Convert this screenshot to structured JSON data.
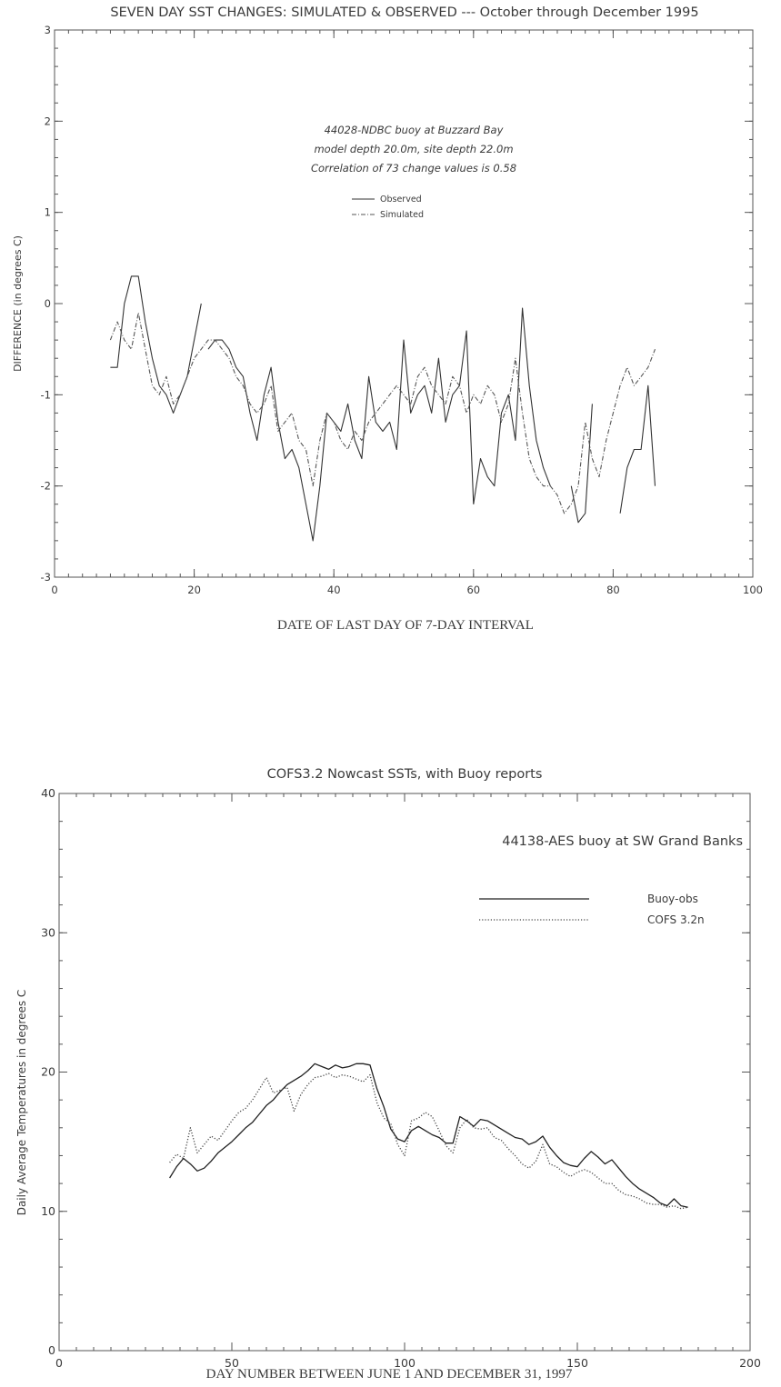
{
  "chart_data": [
    {
      "type": "line",
      "title": "SEVEN DAY SST CHANGES: SIMULATED & OBSERVED --- October through December 1995",
      "xlabel": "DATE OF LAST DAY OF 7-DAY INTERVAL",
      "ylabel": "DIFFERENCE (in degrees C)",
      "xlim": [
        0,
        100
      ],
      "ylim": [
        -3,
        3
      ],
      "xticks": [
        "0",
        "20",
        "40",
        "60",
        "80",
        "100"
      ],
      "yticks": [
        "-3",
        "-2",
        "-1",
        "0",
        "1",
        "2",
        "3"
      ],
      "annotations": [
        "44028-NDBC buoy at Buzzard Bay",
        "model depth 20.0m, site depth 22.0m",
        "Correlation of 73 change values is 0.58"
      ],
      "legend_position": "top-center",
      "grid": false,
      "series": [
        {
          "name": "Observed",
          "style": "solid",
          "segments": [
            {
              "x": [
                8,
                9,
                10,
                11,
                12,
                13,
                14,
                15,
                16,
                17,
                18,
                19,
                20,
                21
              ],
              "y": [
                -0.7,
                -0.7,
                0.0,
                0.3,
                0.3,
                -0.2,
                -0.6,
                -0.9,
                -1.0,
                -1.2,
                -1.0,
                -0.8,
                -0.4,
                0.0
              ]
            },
            {
              "x": [
                22,
                23,
                24,
                25,
                26,
                27,
                28,
                29,
                30,
                31,
                32,
                33,
                34,
                35,
                36,
                37,
                38,
                39,
                40,
                41,
                42,
                43,
                44,
                45,
                46,
                47,
                48,
                49,
                50,
                51,
                52,
                53,
                54,
                55,
                56,
                57,
                58,
                59,
                60
              ],
              "y": [
                -0.5,
                -0.4,
                -0.4,
                -0.5,
                -0.7,
                -0.8,
                -1.2,
                -1.5,
                -1.0,
                -0.7,
                -1.3,
                -1.7,
                -1.6,
                -1.8,
                -2.2,
                -2.6,
                -2.0,
                -1.2,
                -1.3,
                -1.4,
                -1.1,
                -1.5,
                -1.7,
                -0.8,
                -1.3,
                -1.4,
                -1.3,
                -1.6,
                -0.4,
                -1.2,
                -1.0,
                -0.9,
                -1.2,
                -0.6,
                -1.3,
                -1.0,
                -0.9,
                -0.3,
                -2.2
              ]
            },
            {
              "x": [
                60,
                61,
                62,
                63,
                64,
                65,
                66,
                67,
                68,
                69,
                70,
                71
              ],
              "y": [
                -2.2,
                -1.7,
                -1.9,
                -2.0,
                -1.2,
                -1.0,
                -1.5,
                -0.05,
                -0.9,
                -1.5,
                -1.8,
                -2.0
              ]
            },
            {
              "x": [
                74,
                75,
                76,
                77
              ],
              "y": [
                -2.0,
                -2.4,
                -2.3,
                -1.1
              ]
            },
            {
              "x": [
                81,
                82,
                83,
                84,
                85,
                86
              ],
              "y": [
                -2.3,
                -1.8,
                -1.6,
                -1.6,
                -0.9,
                -2.0
              ]
            }
          ]
        },
        {
          "name": "Simulated",
          "style": "dashdot",
          "segments": [
            {
              "x": [
                8,
                9,
                10,
                11,
                12,
                13,
                14,
                15,
                16,
                17,
                18,
                19,
                20,
                21,
                22,
                23,
                24,
                25,
                26,
                27,
                28,
                29,
                30,
                31,
                32,
                33,
                34,
                35,
                36,
                37,
                38,
                39,
                40,
                41,
                42,
                43,
                44,
                45,
                46,
                47,
                48,
                49,
                50,
                51,
                52,
                53,
                54,
                55,
                56,
                57,
                58,
                59,
                60,
                61,
                62,
                63,
                64,
                65,
                66,
                67,
                68,
                69,
                70,
                71,
                72,
                73,
                74,
                75,
                76,
                77,
                78,
                79,
                80,
                81,
                82,
                83,
                84,
                85,
                86
              ],
              "y": [
                -0.4,
                -0.2,
                -0.4,
                -0.5,
                -0.1,
                -0.5,
                -0.9,
                -1.0,
                -0.8,
                -1.1,
                -1.0,
                -0.8,
                -0.6,
                -0.5,
                -0.4,
                -0.4,
                -0.5,
                -0.6,
                -0.8,
                -0.9,
                -1.1,
                -1.2,
                -1.1,
                -0.9,
                -1.4,
                -1.3,
                -1.2,
                -1.5,
                -1.6,
                -2.0,
                -1.5,
                -1.2,
                -1.3,
                -1.5,
                -1.6,
                -1.4,
                -1.5,
                -1.3,
                -1.2,
                -1.1,
                -1.0,
                -0.9,
                -1.0,
                -1.1,
                -0.8,
                -0.7,
                -0.9,
                -1.0,
                -1.1,
                -0.8,
                -0.9,
                -1.2,
                -1.0,
                -1.1,
                -0.9,
                -1.0,
                -1.3,
                -1.1,
                -0.6,
                -1.2,
                -1.7,
                -1.9,
                -2.0,
                -2.0,
                -2.1,
                -2.3,
                -2.2,
                -2.0,
                -1.3,
                -1.7,
                -1.9,
                -1.5,
                -1.2,
                -0.9,
                -0.7,
                -0.9,
                -0.8,
                -0.7,
                -0.5
              ]
            }
          ]
        }
      ]
    },
    {
      "type": "line",
      "title": "COFS3.2 Nowcast SSTs, with Buoy reports",
      "xlabel": "DAY NUMBER BETWEEN JUNE 1 AND DECEMBER 31, 1997",
      "ylabel": "Daily Average Temperatures in degrees C",
      "xlim": [
        0,
        200
      ],
      "ylim": [
        0,
        40
      ],
      "xticks": [
        "0",
        "50",
        "100",
        "150",
        "200"
      ],
      "yticks": [
        "0",
        "10",
        "20",
        "30",
        "40"
      ],
      "annotations": [
        "44138-AES  buoy at SW Grand Banks"
      ],
      "legend_position": "top-right",
      "grid": false,
      "series": [
        {
          "name": "Buoy-obs",
          "style": "solid",
          "segments": [
            {
              "x": [
                32,
                34,
                36,
                38,
                40,
                42,
                44,
                46,
                48,
                50,
                52,
                54,
                56,
                58,
                60,
                62,
                64,
                66,
                68,
                70,
                72,
                74,
                76,
                78,
                80,
                82,
                84,
                86,
                88,
                90,
                92,
                94,
                96,
                98,
                100,
                102,
                104,
                106,
                108,
                110,
                112,
                114,
                116,
                118,
                120,
                122,
                124,
                126,
                128,
                130,
                132,
                134,
                136,
                138,
                140,
                142,
                144,
                146,
                148,
                150,
                152,
                154,
                156,
                158,
                160,
                162,
                164,
                166,
                168,
                170,
                172,
                174,
                176,
                178,
                180,
                182
              ],
              "y": [
                12.4,
                13.2,
                13.8,
                13.4,
                12.9,
                13.1,
                13.6,
                14.2,
                14.6,
                15.0,
                15.5,
                16.0,
                16.4,
                17.0,
                17.6,
                18.0,
                18.6,
                19.1,
                19.4,
                19.7,
                20.1,
                20.6,
                20.4,
                20.2,
                20.5,
                20.3,
                20.4,
                20.6,
                20.6,
                20.5,
                18.8,
                17.5,
                15.9,
                15.2,
                15.0,
                15.8,
                16.1,
                15.8,
                15.5,
                15.3,
                14.9,
                14.9,
                16.8,
                16.5,
                16.1,
                16.6,
                16.5,
                16.2,
                15.9,
                15.6,
                15.3,
                15.2,
                14.8,
                15.0,
                15.4,
                14.6,
                14.0,
                13.5,
                13.3,
                13.2,
                13.8,
                14.3,
                13.9,
                13.4,
                13.7,
                13.1,
                12.5,
                12.0,
                11.6,
                11.3,
                11.0,
                10.6,
                10.4,
                10.9,
                10.4,
                10.3
              ]
            }
          ]
        },
        {
          "name": "COFS 3.2n",
          "style": "dotted",
          "segments": [
            {
              "x": [
                32,
                34,
                36,
                38,
                40,
                42,
                44,
                46,
                48,
                50,
                52,
                54,
                56,
                58,
                60,
                62,
                64,
                66,
                68,
                70,
                72,
                74,
                76,
                78,
                80,
                82,
                84,
                86,
                88,
                90,
                92,
                94,
                96,
                98,
                100,
                102,
                104,
                106,
                108,
                110,
                112,
                114,
                116,
                118,
                120,
                122,
                124,
                126,
                128,
                130,
                132,
                134,
                136,
                138,
                140,
                142,
                144,
                146,
                148,
                150,
                152,
                154,
                156,
                158,
                160,
                162,
                164,
                166,
                168,
                170,
                172,
                174,
                176,
                178,
                180,
                182
              ],
              "y": [
                13.5,
                14.1,
                13.8,
                16.0,
                14.2,
                14.8,
                15.4,
                15.1,
                15.8,
                16.5,
                17.1,
                17.4,
                18.0,
                18.8,
                19.6,
                18.5,
                18.7,
                18.9,
                17.2,
                18.4,
                19.1,
                19.6,
                19.7,
                19.9,
                19.6,
                19.8,
                19.7,
                19.5,
                19.3,
                19.8,
                17.8,
                16.7,
                16.3,
                14.8,
                14.0,
                16.5,
                16.7,
                17.1,
                16.8,
                15.8,
                14.7,
                14.2,
                16.0,
                16.6,
                16.0,
                15.9,
                16.0,
                15.3,
                15.1,
                14.5,
                14.0,
                13.4,
                13.1,
                13.6,
                14.8,
                13.4,
                13.2,
                12.8,
                12.5,
                12.8,
                13.0,
                12.8,
                12.4,
                12.0,
                12.0,
                11.5,
                11.2,
                11.1,
                10.9,
                10.6,
                10.5,
                10.5,
                10.3,
                10.4,
                10.2,
                10.3
              ]
            }
          ]
        }
      ]
    }
  ]
}
